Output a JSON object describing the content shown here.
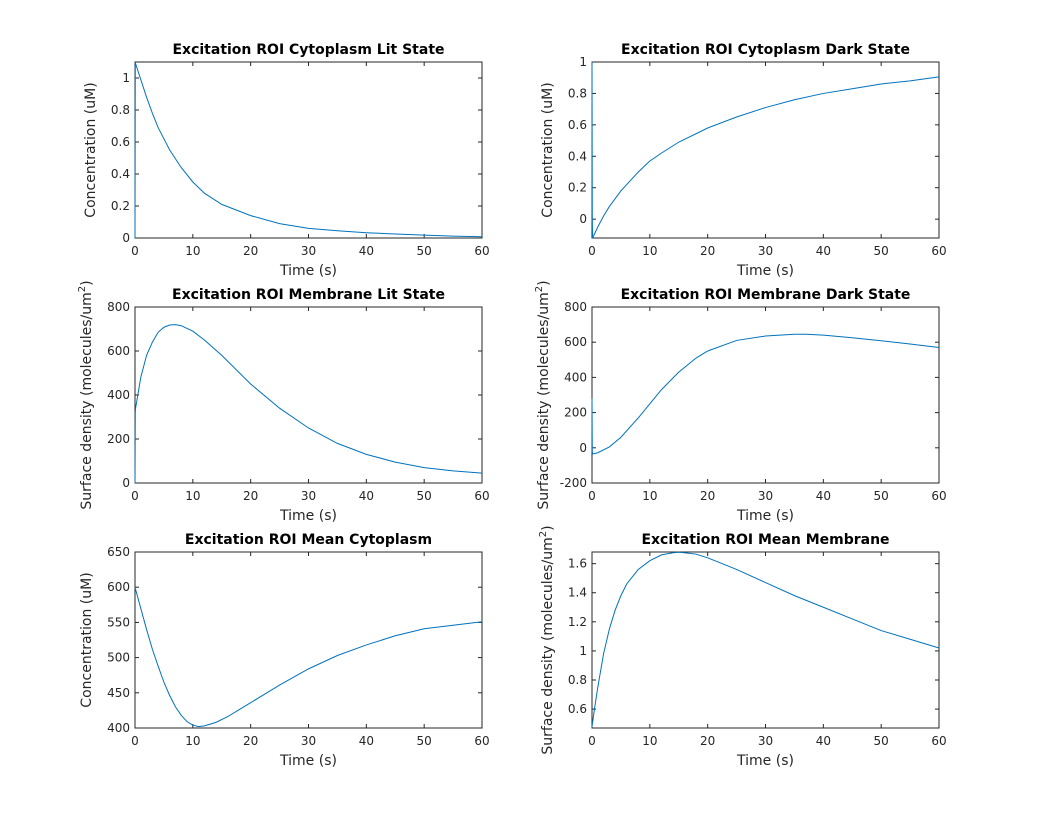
{
  "figure": {
    "background": "#ffffff",
    "line_color": "#0072bd"
  },
  "chart_data": [
    {
      "type": "line",
      "title": "Excitation ROI Cytoplasm Lit State",
      "xlabel": "Time (s)",
      "ylabel": "Concentration (uM)",
      "ylabel_sup": "",
      "xlim": [
        0,
        60
      ],
      "ylim": [
        0,
        1.1
      ],
      "xticks": [
        0,
        10,
        20,
        30,
        40,
        50,
        60
      ],
      "yticks": [
        0,
        0.2,
        0.4,
        0.6,
        0.8,
        1
      ],
      "ytick_labels": [
        "0",
        "0.2",
        "0.4",
        "0.6",
        "0.8",
        "1"
      ],
      "grid": false,
      "series": [
        {
          "x": [
            0,
            0.05,
            0.1,
            1,
            2,
            3,
            4,
            5,
            6,
            8,
            10,
            12,
            15,
            20,
            25,
            30,
            35,
            40,
            45,
            50,
            55,
            60
          ],
          "y": [
            0,
            1.1,
            1.09,
            0.99,
            0.88,
            0.78,
            0.69,
            0.62,
            0.55,
            0.44,
            0.35,
            0.28,
            0.21,
            0.14,
            0.09,
            0.06,
            0.045,
            0.033,
            0.025,
            0.018,
            0.012,
            0.008
          ]
        }
      ]
    },
    {
      "type": "line",
      "title": "Excitation ROI Cytoplasm Dark State",
      "xlabel": "Time (s)",
      "ylabel": "Concentration (uM)",
      "ylabel_sup": "",
      "xlim": [
        0,
        60
      ],
      "ylim": [
        -0.12,
        1.0
      ],
      "xticks": [
        0,
        10,
        20,
        30,
        40,
        50,
        60
      ],
      "yticks": [
        0,
        0.2,
        0.4,
        0.6,
        0.8,
        1
      ],
      "ytick_labels": [
        "0",
        "0.2",
        "0.4",
        "0.6",
        "0.8",
        "1"
      ],
      "grid": false,
      "series": [
        {
          "x": [
            0,
            0.05,
            0.1,
            1,
            2,
            3,
            4,
            5,
            6,
            8,
            10,
            12,
            15,
            20,
            25,
            30,
            35,
            40,
            45,
            50,
            55,
            60
          ],
          "y": [
            1.0,
            0.02,
            -0.12,
            -0.05,
            0.02,
            0.08,
            0.13,
            0.18,
            0.22,
            0.3,
            0.37,
            0.42,
            0.49,
            0.58,
            0.65,
            0.71,
            0.76,
            0.8,
            0.83,
            0.86,
            0.88,
            0.905
          ]
        }
      ]
    },
    {
      "type": "line",
      "title": "Excitation ROI Membrane Lit State",
      "xlabel": "Time (s)",
      "ylabel": "Surface density (molecules/um",
      "ylabel_sup": "2",
      "xlim": [
        0,
        60
      ],
      "ylim": [
        0,
        800
      ],
      "xticks": [
        0,
        10,
        20,
        30,
        40,
        50,
        60
      ],
      "yticks": [
        0,
        200,
        400,
        600,
        800
      ],
      "ytick_labels": [
        "0",
        "200",
        "400",
        "600",
        "800"
      ],
      "grid": false,
      "series": [
        {
          "x": [
            0,
            0.05,
            0.1,
            1,
            2,
            3,
            4,
            5,
            6,
            7,
            8,
            10,
            12,
            15,
            20,
            25,
            30,
            35,
            40,
            45,
            50,
            55,
            60
          ],
          "y": [
            0,
            320,
            340,
            480,
            580,
            640,
            685,
            708,
            718,
            720,
            715,
            690,
            650,
            580,
            450,
            340,
            250,
            180,
            130,
            95,
            70,
            55,
            45
          ]
        }
      ]
    },
    {
      "type": "line",
      "title": "Excitation ROI Membrane Dark State",
      "xlabel": "Time (s)",
      "ylabel": "Surface density (molecules/um",
      "ylabel_sup": "2",
      "xlim": [
        0,
        60
      ],
      "ylim": [
        -200,
        800
      ],
      "xticks": [
        0,
        10,
        20,
        30,
        40,
        50,
        60
      ],
      "yticks": [
        -200,
        0,
        200,
        400,
        600,
        800
      ],
      "ytick_labels": [
        "-200",
        "0",
        "200",
        "400",
        "600",
        "800"
      ],
      "grid": false,
      "series": [
        {
          "x": [
            0,
            0.05,
            0.1,
            1,
            3,
            5,
            8,
            10,
            12,
            15,
            18,
            20,
            25,
            30,
            35,
            37,
            40,
            45,
            50,
            55,
            60
          ],
          "y": [
            280,
            -20,
            -35,
            -28,
            5,
            60,
            170,
            250,
            330,
            430,
            510,
            550,
            610,
            635,
            645,
            645,
            640,
            625,
            608,
            590,
            570
          ]
        }
      ]
    },
    {
      "type": "line",
      "title": "Excitation ROI Mean Cytoplasm",
      "xlabel": "Time (s)",
      "ylabel": "Concentration (uM)",
      "ylabel_sup": "",
      "xlim": [
        0,
        60
      ],
      "ylim": [
        400,
        650
      ],
      "xticks": [
        0,
        10,
        20,
        30,
        40,
        50,
        60
      ],
      "yticks": [
        400,
        450,
        500,
        550,
        600,
        650
      ],
      "ytick_labels": [
        "400",
        "450",
        "500",
        "550",
        "600",
        "650"
      ],
      "grid": false,
      "series": [
        {
          "x": [
            0,
            1,
            2,
            3,
            4,
            5,
            6,
            7,
            8,
            9,
            10,
            11,
            12,
            14,
            16,
            18,
            20,
            25,
            30,
            35,
            40,
            45,
            50,
            55,
            60
          ],
          "y": [
            600,
            570,
            540,
            512,
            488,
            465,
            446,
            430,
            418,
            409,
            404,
            402,
            403,
            408,
            416,
            426,
            436,
            461,
            484,
            503,
            518,
            531,
            541,
            546,
            551
          ]
        }
      ]
    },
    {
      "type": "line",
      "title": "Excitation ROI Mean Membrane",
      "xlabel": "Time (s)",
      "ylabel": "Surface density (molecules/um",
      "ylabel_sup": "2",
      "xlim": [
        0,
        60
      ],
      "ylim": [
        0.47,
        1.68
      ],
      "xticks": [
        0,
        10,
        20,
        30,
        40,
        50,
        60
      ],
      "yticks": [
        0.6,
        0.8,
        1.0,
        1.2,
        1.4,
        1.6
      ],
      "ytick_labels": [
        "0.6",
        "0.8",
        "1",
        "1.2",
        "1.4",
        "1.6"
      ],
      "grid": false,
      "series": [
        {
          "x": [
            0,
            0.5,
            1,
            2,
            3,
            4,
            5,
            6,
            8,
            10,
            12,
            14,
            15,
            16,
            18,
            20,
            25,
            30,
            35,
            40,
            45,
            50,
            55,
            60
          ],
          "y": [
            0.48,
            0.62,
            0.75,
            0.98,
            1.15,
            1.28,
            1.38,
            1.46,
            1.56,
            1.62,
            1.66,
            1.675,
            1.678,
            1.675,
            1.665,
            1.64,
            1.56,
            1.47,
            1.38,
            1.3,
            1.22,
            1.14,
            1.08,
            1.02
          ]
        }
      ]
    }
  ]
}
